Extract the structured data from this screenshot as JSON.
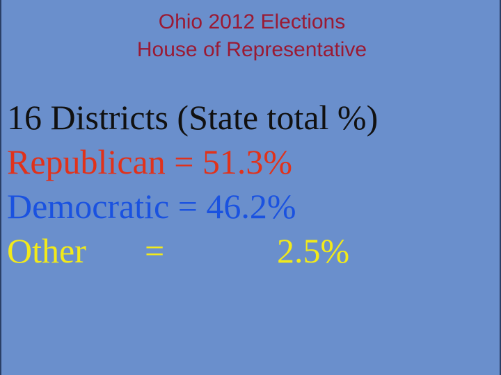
{
  "colors": {
    "background": "#6a8fcc",
    "title": "#9a1a33",
    "heading": "#111111",
    "republican": "#e0321b",
    "democratic": "#1a52e0",
    "other": "#f2ea1a"
  },
  "slide": {
    "title_line1": "Ohio 2012 Elections",
    "title_line2": "House of Representative",
    "heading": "16 Districts (State total %)",
    "results": [
      {
        "label": "Republican",
        "equals": "=",
        "value": "51.3%"
      },
      {
        "label": "Democratic",
        "equals": "=",
        "value": "46.2%"
      },
      {
        "label": "Other",
        "equals": "=",
        "value": "2.5%"
      }
    ]
  }
}
